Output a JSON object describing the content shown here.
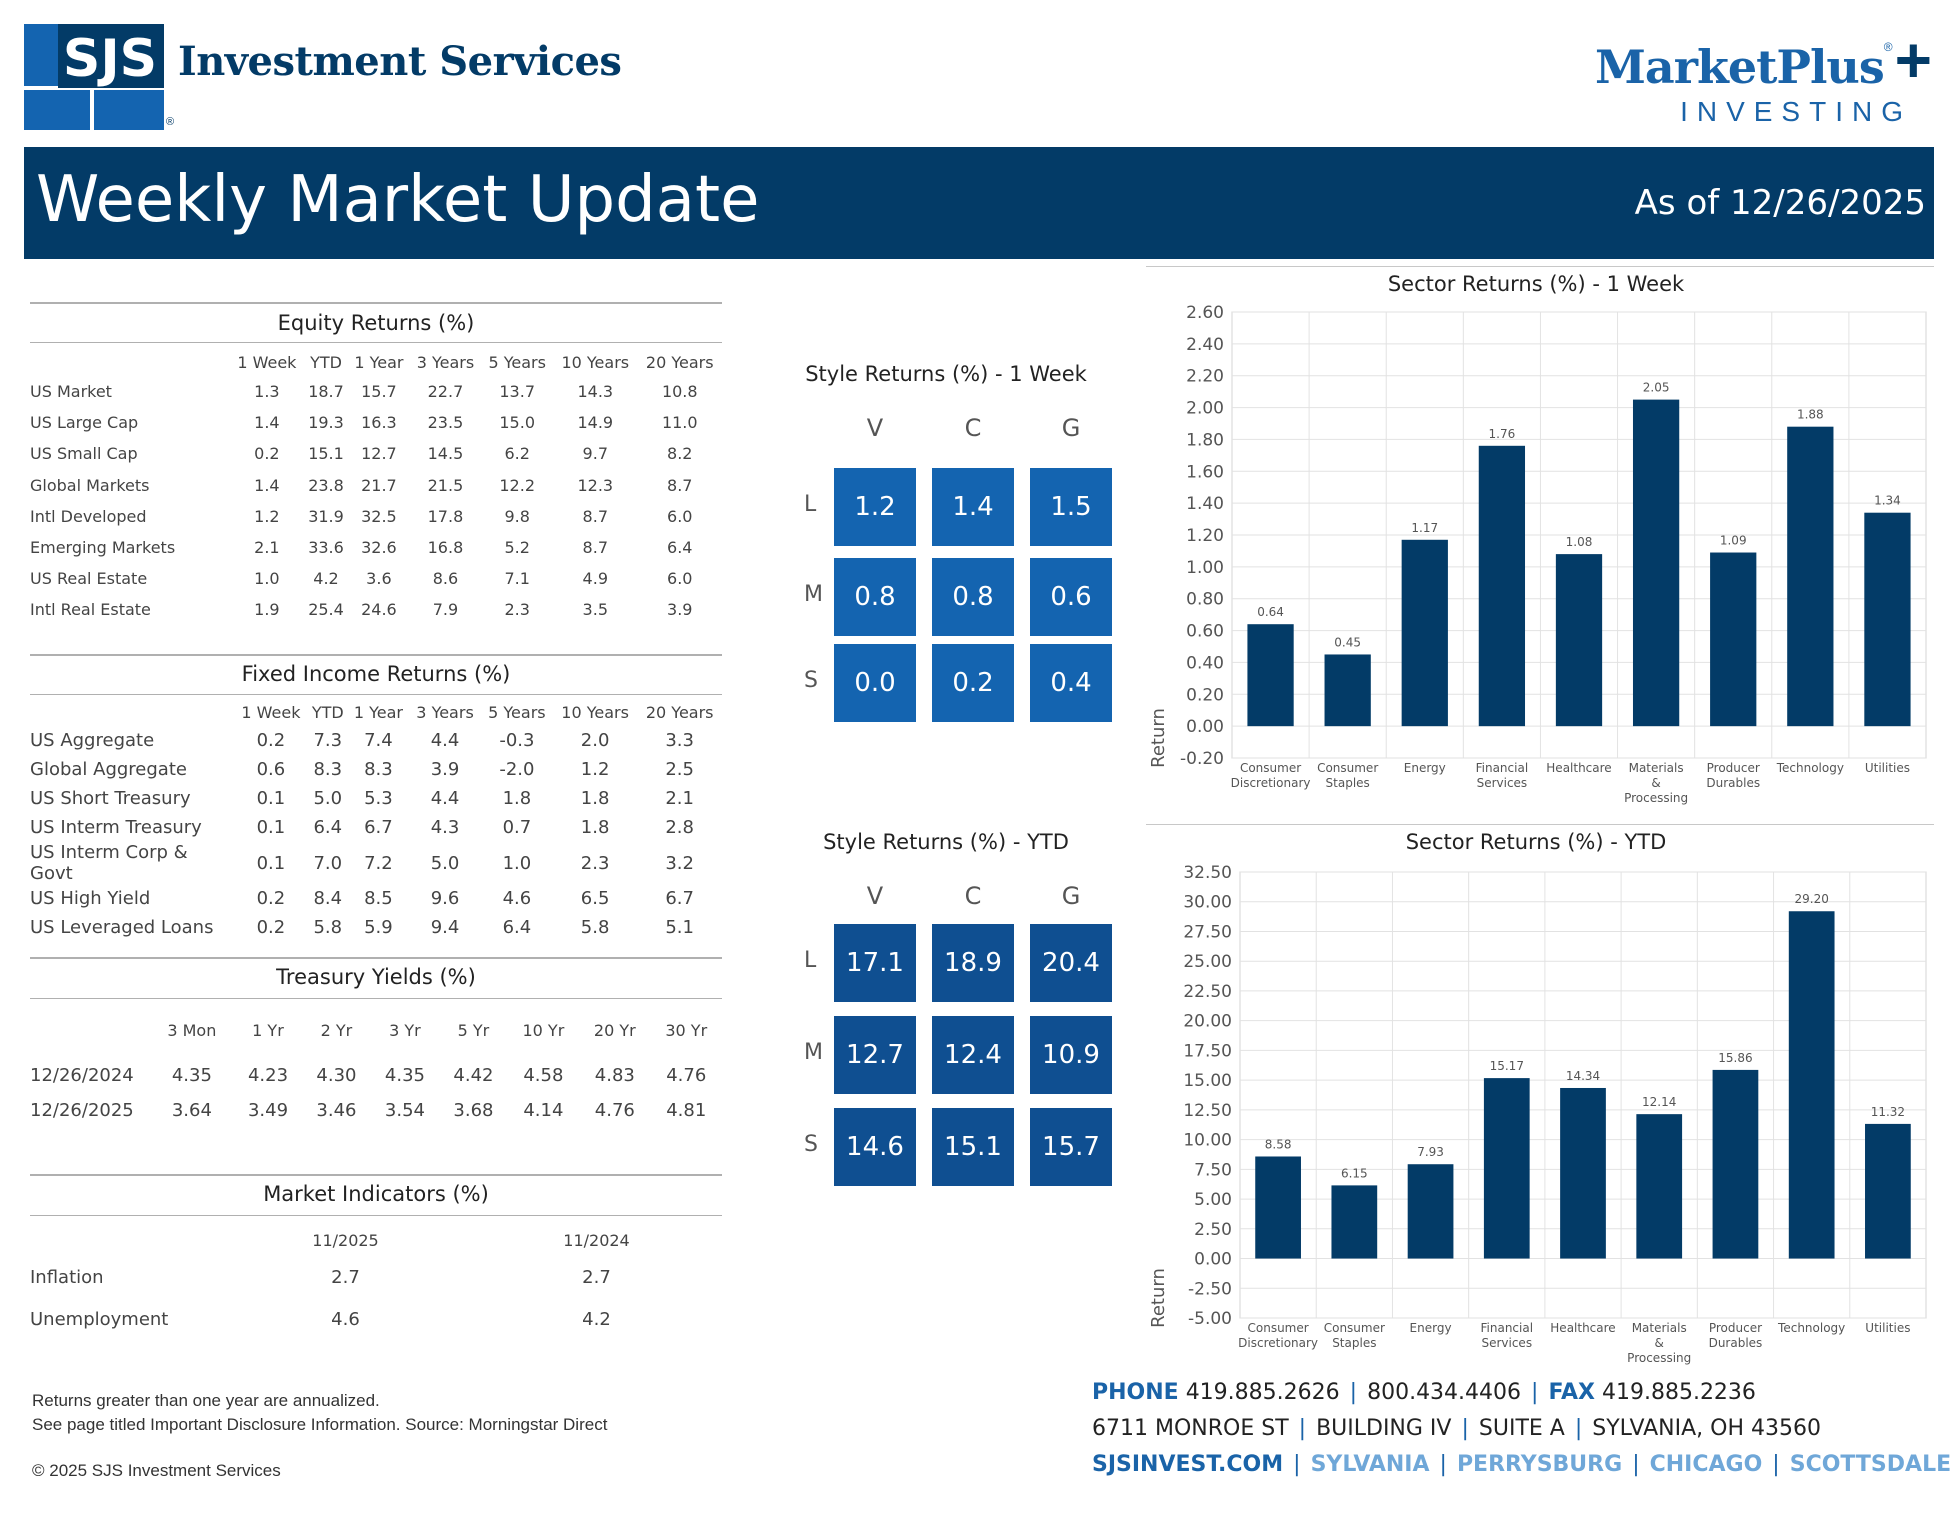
{
  "brand": {
    "sjs_mark": "SJS",
    "company": "Investment Services",
    "registered": "®",
    "mp_word": "MarketPlus",
    "mp_reg": "®",
    "mp_sub": "INVESTING"
  },
  "banner": {
    "title": "Weekly Market Update",
    "date": "As of 12/26/2025"
  },
  "equity": {
    "title": "Equity Returns (%)",
    "columns": [
      "1 Week",
      "YTD",
      "1 Year",
      "3 Years",
      "5 Years",
      "10 Years",
      "20 Years"
    ],
    "rows": [
      {
        "label": "US Market",
        "v": [
          "1.3",
          "18.7",
          "15.7",
          "22.7",
          "13.7",
          "14.3",
          "10.8"
        ]
      },
      {
        "label": "US Large Cap",
        "v": [
          "1.4",
          "19.3",
          "16.3",
          "23.5",
          "15.0",
          "14.9",
          "11.0"
        ]
      },
      {
        "label": "US Small Cap",
        "v": [
          "0.2",
          "15.1",
          "12.7",
          "14.5",
          "6.2",
          "9.7",
          "8.2"
        ]
      },
      {
        "label": "Global Markets",
        "v": [
          "1.4",
          "23.8",
          "21.7",
          "21.5",
          "12.2",
          "12.3",
          "8.7"
        ]
      },
      {
        "label": "Intl Developed",
        "v": [
          "1.2",
          "31.9",
          "32.5",
          "17.8",
          "9.8",
          "8.7",
          "6.0"
        ]
      },
      {
        "label": "Emerging Markets",
        "v": [
          "2.1",
          "33.6",
          "32.6",
          "16.8",
          "5.2",
          "8.7",
          "6.4"
        ]
      },
      {
        "label": "US Real Estate",
        "v": [
          "1.0",
          "4.2",
          "3.6",
          "8.6",
          "7.1",
          "4.9",
          "6.0"
        ]
      },
      {
        "label": "Intl Real Estate",
        "v": [
          "1.9",
          "25.4",
          "24.6",
          "7.9",
          "2.3",
          "3.5",
          "3.9"
        ]
      }
    ]
  },
  "fixed": {
    "title": "Fixed Income Returns (%)",
    "columns": [
      "1 Week",
      "YTD",
      "1 Year",
      "3 Years",
      "5 Years",
      "10 Years",
      "20 Years"
    ],
    "rows": [
      {
        "label": "US Aggregate",
        "v": [
          "0.2",
          "7.3",
          "7.4",
          "4.4",
          "-0.3",
          "2.0",
          "3.3"
        ]
      },
      {
        "label": "Global Aggregate",
        "v": [
          "0.6",
          "8.3",
          "8.3",
          "3.9",
          "-2.0",
          "1.2",
          "2.5"
        ]
      },
      {
        "label": "US Short Treasury",
        "v": [
          "0.1",
          "5.0",
          "5.3",
          "4.4",
          "1.8",
          "1.8",
          "2.1"
        ]
      },
      {
        "label": "US Interm Treasury",
        "v": [
          "0.1",
          "6.4",
          "6.7",
          "4.3",
          "0.7",
          "1.8",
          "2.8"
        ]
      },
      {
        "label": "US Interm Corp & Govt",
        "v": [
          "0.1",
          "7.0",
          "7.2",
          "5.0",
          "1.0",
          "2.3",
          "3.2"
        ]
      },
      {
        "label": "US High Yield",
        "v": [
          "0.2",
          "8.4",
          "8.5",
          "9.6",
          "4.6",
          "6.5",
          "6.7"
        ]
      },
      {
        "label": "US Leveraged Loans",
        "v": [
          "0.2",
          "5.8",
          "5.9",
          "9.4",
          "6.4",
          "5.8",
          "5.1"
        ]
      }
    ]
  },
  "treasury": {
    "title": "Treasury Yields (%)",
    "columns": [
      "3 Mon",
      "1 Yr",
      "2 Yr",
      "3 Yr",
      "5 Yr",
      "10 Yr",
      "20 Yr",
      "30 Yr"
    ],
    "rows": [
      {
        "label": "12/26/2024",
        "v": [
          "4.35",
          "4.23",
          "4.30",
          "4.35",
          "4.42",
          "4.58",
          "4.83",
          "4.76"
        ]
      },
      {
        "label": "12/26/2025",
        "v": [
          "3.64",
          "3.49",
          "3.46",
          "3.54",
          "3.68",
          "4.14",
          "4.76",
          "4.81"
        ]
      }
    ]
  },
  "indicators": {
    "title": "Market Indicators (%)",
    "columns": [
      "11/2025",
      "11/2024"
    ],
    "rows": [
      {
        "label": "Inflation",
        "v": [
          "2.7",
          "2.7"
        ]
      },
      {
        "label": "Unemployment",
        "v": [
          "4.6",
          "4.2"
        ]
      }
    ]
  },
  "style_week": {
    "title": "Style Returns (%)  - 1 Week",
    "cols": [
      "V",
      "C",
      "G"
    ],
    "rows": [
      "L",
      "M",
      "S"
    ],
    "values": [
      [
        "1.2",
        "1.4",
        "1.5"
      ],
      [
        "0.8",
        "0.8",
        "0.6"
      ],
      [
        "0.0",
        "0.2",
        "0.4"
      ]
    ]
  },
  "style_ytd": {
    "title": "Style Returns (%)  - YTD",
    "cols": [
      "V",
      "C",
      "G"
    ],
    "rows": [
      "L",
      "M",
      "S"
    ],
    "values": [
      [
        "17.1",
        "18.9",
        "20.4"
      ],
      [
        "12.7",
        "12.4",
        "10.9"
      ],
      [
        "14.6",
        "15.1",
        "15.7"
      ]
    ]
  },
  "chart_data": [
    {
      "type": "bar",
      "title": "Sector Returns (%)  - 1 Week",
      "ylabel": "Return",
      "categories": [
        [
          "Consumer",
          "Discretionary"
        ],
        [
          "Consumer",
          "Staples"
        ],
        [
          "Energy"
        ],
        [
          "Financial",
          "Services"
        ],
        [
          "Healthcare"
        ],
        [
          "Materials",
          "&",
          "Processing"
        ],
        [
          "Producer",
          "Durables"
        ],
        [
          "Technology"
        ],
        [
          "Utilities"
        ]
      ],
      "values": [
        0.64,
        0.45,
        1.17,
        1.76,
        1.08,
        2.05,
        1.09,
        1.88,
        1.34
      ],
      "labels": [
        "0.64",
        "0.45",
        "1.17",
        "1.76",
        "1.08",
        "2.05",
        "1.09",
        "1.88",
        "1.34"
      ],
      "ylim": [
        -0.2,
        2.6
      ],
      "yticks": [
        "-0.20",
        "0.00",
        "0.20",
        "0.40",
        "0.60",
        "0.80",
        "1.00",
        "1.20",
        "1.40",
        "1.60",
        "1.80",
        "2.00",
        "2.20",
        "2.40",
        "2.60"
      ],
      "grid": true,
      "bar_color": "#033b67"
    },
    {
      "type": "bar",
      "title": "Sector Returns (%)  - YTD",
      "ylabel": "Return",
      "categories": [
        [
          "Consumer",
          "Discretionary"
        ],
        [
          "Consumer",
          "Staples"
        ],
        [
          "Energy"
        ],
        [
          "Financial",
          "Services"
        ],
        [
          "Healthcare"
        ],
        [
          "Materials",
          "&",
          "Processing"
        ],
        [
          "Producer",
          "Durables"
        ],
        [
          "Technology"
        ],
        [
          "Utilities"
        ]
      ],
      "values": [
        8.58,
        6.15,
        7.93,
        15.17,
        14.34,
        12.14,
        15.86,
        29.2,
        11.32
      ],
      "labels": [
        "8.58",
        "6.15",
        "7.93",
        "15.17",
        "14.34",
        "12.14",
        "15.86",
        "29.20",
        "11.32"
      ],
      "ylim": [
        -5,
        32.5
      ],
      "yticks": [
        "-5.00",
        "-2.50",
        "0.00",
        "2.50",
        "5.00",
        "7.50",
        "10.00",
        "12.50",
        "15.00",
        "17.50",
        "20.00",
        "22.50",
        "25.00",
        "27.50",
        "30.00",
        "32.50"
      ],
      "grid": true,
      "bar_color": "#033b67"
    }
  ],
  "footer": {
    "note1": "Returns greater than one year are annualized.",
    "note2": "See page titled Important Disclosure Information. Source: Morningstar Direct",
    "copyright": "© 2025 SJS Investment Services",
    "phone_label": "PHONE",
    "phone1": "419.885.2626",
    "phone2": "800.434.4406",
    "fax_label": "FAX",
    "fax": "419.885.2236",
    "addr1": "6711 MONROE ST",
    "addr2": "BUILDING IV",
    "addr3": "SUITE A",
    "addr4": "SYLVANIA, OH 43560",
    "site": "SJSINVEST.COM",
    "cities": [
      "SYLVANIA",
      "PERRYSBURG",
      "CHICAGO",
      "SCOTTSDALE"
    ]
  }
}
